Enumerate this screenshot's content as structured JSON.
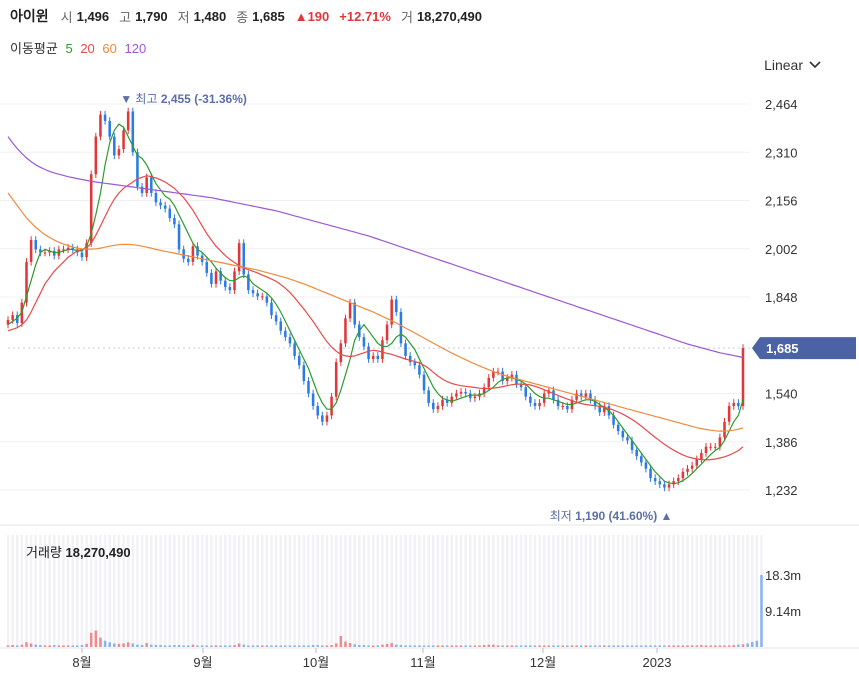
{
  "header": {
    "name": "아이윈",
    "open_label": "시",
    "open": "1,496",
    "high_label": "고",
    "high": "1,790",
    "low_label": "저",
    "low": "1,480",
    "close_label": "종",
    "close": "1,685",
    "change": "190",
    "change_pct": "+12.71%",
    "volume_label": "거",
    "volume": "18,270,490"
  },
  "ma_legend": {
    "label": "이동평균",
    "periods": [
      "5",
      "20",
      "60",
      "120"
    ],
    "colors": [
      "#2e9b2e",
      "#e84a4a",
      "#f08a3c",
      "#9b59d8"
    ]
  },
  "scale_selector": {
    "label": "Linear"
  },
  "volume_panel": {
    "label": "거래량",
    "value": "18,270,490"
  },
  "colors": {
    "up": "#e0373a",
    "down": "#2b7be4",
    "last_tag": "#4b63a5"
  },
  "chart_data": {
    "type": "candlestick",
    "y_ticks": [
      "2,464",
      "2,310",
      "2,156",
      "2,002",
      "1,848",
      "1,540",
      "1,386",
      "1,232"
    ],
    "ylim": [
      1190,
      2464
    ],
    "volume_ticks": [
      "18.3m",
      "9.14m"
    ],
    "x_ticks": [
      "8월",
      "9월",
      "10월",
      "11월",
      "12월",
      "2023"
    ],
    "last_price_tag": "1,685",
    "annotations": {
      "high": {
        "prefix": "▼",
        "label": "최고",
        "value": "2,455 (-31.36%)"
      },
      "low": {
        "label": "최저",
        "value": "1,190 (41.60%)",
        "suffix": "▲"
      }
    },
    "closes": [
      1775,
      1790,
      1765,
      1830,
      1960,
      2030,
      2000,
      1990,
      1990,
      1995,
      1980,
      2000,
      2000,
      2005,
      2000,
      1990,
      1975,
      2020,
      2240,
      2360,
      2430,
      2410,
      2360,
      2300,
      2320,
      2380,
      2440,
      2310,
      2200,
      2180,
      2230,
      2180,
      2150,
      2140,
      2130,
      2100,
      2080,
      2000,
      1970,
      1960,
      2010,
      1980,
      1960,
      1925,
      1890,
      1930,
      1900,
      1880,
      1870,
      1930,
      2020,
      1920,
      1870,
      1860,
      1850,
      1850,
      1830,
      1790,
      1770,
      1740,
      1720,
      1700,
      1660,
      1630,
      1580,
      1540,
      1500,
      1470,
      1450,
      1470,
      1530,
      1640,
      1700,
      1780,
      1830,
      1760,
      1720,
      1690,
      1650,
      1660,
      1650,
      1710,
      1760,
      1840,
      1800,
      1700,
      1660,
      1640,
      1630,
      1600,
      1550,
      1510,
      1490,
      1500,
      1520,
      1510,
      1530,
      1540,
      1545,
      1540,
      1525,
      1530,
      1540,
      1560,
      1590,
      1610,
      1610,
      1580,
      1590,
      1600,
      1570,
      1560,
      1530,
      1510,
      1500,
      1510,
      1540,
      1550,
      1520,
      1500,
      1500,
      1490,
      1520,
      1540,
      1530,
      1540,
      1520,
      1500,
      1480,
      1500,
      1470,
      1440,
      1420,
      1400,
      1390,
      1360,
      1340,
      1320,
      1300,
      1270,
      1260,
      1250,
      1240,
      1250,
      1260,
      1270,
      1290,
      1300,
      1310,
      1330,
      1350,
      1370,
      1370,
      1370,
      1400,
      1450,
      1500,
      1510,
      1500,
      1685
    ],
    "ma5": [
      1760,
      1770,
      1780,
      1800,
      1850,
      1900,
      1950,
      1990,
      2000,
      1995,
      1990,
      1990,
      1995,
      2000,
      2000,
      1995,
      1995,
      2010,
      2050,
      2110,
      2180,
      2270,
      2340,
      2380,
      2400,
      2390,
      2360,
      2330,
      2300,
      2290,
      2270,
      2240,
      2210,
      2190,
      2170,
      2160,
      2140,
      2110,
      2080,
      2050,
      2020,
      2000,
      1990,
      1975,
      1960,
      1940,
      1925,
      1910,
      1900,
      1900,
      1910,
      1915,
      1910,
      1890,
      1880,
      1870,
      1860,
      1845,
      1825,
      1800,
      1770,
      1740,
      1710,
      1680,
      1650,
      1620,
      1580,
      1540,
      1510,
      1490,
      1490,
      1510,
      1550,
      1600,
      1650,
      1710,
      1740,
      1760,
      1740,
      1720,
      1700,
      1690,
      1690,
      1700,
      1720,
      1730,
      1720,
      1700,
      1680,
      1650,
      1620,
      1590,
      1560,
      1540,
      1525,
      1520,
      1515,
      1520,
      1525,
      1530,
      1535,
      1535,
      1535,
      1540,
      1550,
      1560,
      1575,
      1585,
      1590,
      1590,
      1585,
      1580,
      1570,
      1555,
      1540,
      1530,
      1525,
      1525,
      1520,
      1515,
      1510,
      1505,
      1505,
      1510,
      1515,
      1520,
      1520,
      1515,
      1505,
      1495,
      1485,
      1470,
      1450,
      1430,
      1410,
      1390,
      1370,
      1350,
      1330,
      1310,
      1290,
      1275,
      1260,
      1255,
      1252,
      1255,
      1262,
      1272,
      1285,
      1300,
      1315,
      1330,
      1345,
      1358,
      1368,
      1390,
      1420,
      1450,
      1470,
      1520
    ],
    "ma20": [
      1740,
      1745,
      1750,
      1760,
      1775,
      1800,
      1830,
      1860,
      1890,
      1910,
      1930,
      1945,
      1960,
      1975,
      1985,
      1995,
      2000,
      2005,
      2020,
      2045,
      2075,
      2105,
      2135,
      2160,
      2180,
      2195,
      2205,
      2215,
      2225,
      2230,
      2235,
      2232,
      2228,
      2222,
      2215,
      2205,
      2195,
      2180,
      2165,
      2145,
      2125,
      2100,
      2075,
      2050,
      2030,
      2010,
      1995,
      1980,
      1968,
      1958,
      1948,
      1940,
      1935,
      1930,
      1925,
      1918,
      1912,
      1905,
      1898,
      1888,
      1876,
      1862,
      1846,
      1828,
      1810,
      1790,
      1770,
      1748,
      1726,
      1705,
      1688,
      1675,
      1665,
      1660,
      1658,
      1660,
      1665,
      1670,
      1675,
      1678,
      1676,
      1672,
      1668,
      1665,
      1660,
      1655,
      1650,
      1646,
      1642,
      1637,
      1630,
      1620,
      1608,
      1596,
      1586,
      1578,
      1572,
      1568,
      1565,
      1563,
      1561,
      1559,
      1557,
      1556,
      1556,
      1557,
      1559,
      1562,
      1565,
      1568,
      1570,
      1570,
      1569,
      1567,
      1563,
      1558,
      1552,
      1546,
      1540,
      1534,
      1528,
      1522,
      1517,
      1512,
      1508,
      1505,
      1503,
      1501,
      1499,
      1496,
      1492,
      1487,
      1481,
      1474,
      1466,
      1457,
      1447,
      1436,
      1424,
      1412,
      1400,
      1389,
      1378,
      1368,
      1359,
      1351,
      1344,
      1338,
      1334,
      1331,
      1329,
      1328,
      1329,
      1331,
      1334,
      1338,
      1343,
      1350,
      1358,
      1370
    ],
    "ma60": [
      2180,
      2160,
      2140,
      2120,
      2100,
      2085,
      2070,
      2058,
      2047,
      2038,
      2030,
      2023,
      2017,
      2012,
      2008,
      2004,
      2002,
      2001,
      2001,
      2002,
      2004,
      2007,
      2010,
      2013,
      2015,
      2016,
      2016,
      2015,
      2013,
      2010,
      2007,
      2004,
      2000,
      1997,
      1994,
      1991,
      1988,
      1985,
      1982,
      1979,
      1976,
      1973,
      1970,
      1967,
      1964,
      1961,
      1958,
      1955,
      1952,
      1949,
      1946,
      1943,
      1940,
      1937,
      1934,
      1930,
      1926,
      1922,
      1918,
      1914,
      1910,
      1905,
      1900,
      1895,
      1890,
      1884,
      1878,
      1872,
      1866,
      1860,
      1854,
      1848,
      1842,
      1836,
      1830,
      1824,
      1818,
      1812,
      1806,
      1800,
      1793,
      1786,
      1779,
      1772,
      1765,
      1757,
      1749,
      1741,
      1733,
      1725,
      1717,
      1709,
      1701,
      1693,
      1685,
      1677,
      1669,
      1662,
      1655,
      1648,
      1641,
      1634,
      1628,
      1622,
      1616,
      1610,
      1605,
      1600,
      1595,
      1591,
      1587,
      1583,
      1579,
      1575,
      1571,
      1567,
      1563,
      1559,
      1555,
      1551,
      1547,
      1543,
      1539,
      1535,
      1531,
      1527,
      1523,
      1519,
      1515,
      1511,
      1507,
      1503,
      1499,
      1495,
      1491,
      1487,
      1483,
      1479,
      1475,
      1471,
      1467,
      1463,
      1459,
      1455,
      1451,
      1447,
      1443,
      1439,
      1435,
      1431,
      1428,
      1425,
      1423,
      1421,
      1420,
      1420,
      1421,
      1423,
      1426,
      1430
    ],
    "ma120": [
      2360,
      2340,
      2322,
      2306,
      2292,
      2280,
      2270,
      2262,
      2255,
      2249,
      2244,
      2240,
      2236,
      2232,
      2229,
      2226,
      2223,
      2220,
      2217,
      2215,
      2213,
      2211,
      2209,
      2207,
      2205,
      2203,
      2201,
      2199,
      2197,
      2195,
      2193,
      2191,
      2189,
      2187,
      2185,
      2183,
      2181,
      2179,
      2177,
      2175,
      2173,
      2171,
      2169,
      2167,
      2165,
      2162,
      2159,
      2156,
      2153,
      2150,
      2147,
      2144,
      2141,
      2138,
      2135,
      2132,
      2129,
      2126,
      2123,
      2119,
      2115,
      2111,
      2107,
      2103,
      2099,
      2095,
      2091,
      2087,
      2083,
      2079,
      2075,
      2071,
      2067,
      2063,
      2059,
      2055,
      2051,
      2047,
      2043,
      2038,
      2033,
      2028,
      2023,
      2018,
      2013,
      2008,
      2003,
      1998,
      1993,
      1988,
      1983,
      1978,
      1973,
      1968,
      1963,
      1958,
      1953,
      1948,
      1943,
      1938,
      1933,
      1928,
      1923,
      1918,
      1913,
      1908,
      1903,
      1898,
      1893,
      1888,
      1883,
      1878,
      1873,
      1868,
      1863,
      1858,
      1853,
      1848,
      1843,
      1838,
      1833,
      1828,
      1823,
      1818,
      1813,
      1808,
      1803,
      1798,
      1793,
      1788,
      1783,
      1778,
      1773,
      1768,
      1763,
      1758,
      1753,
      1748,
      1743,
      1738,
      1733,
      1728,
      1723,
      1718,
      1713,
      1708,
      1703,
      1698,
      1694,
      1690,
      1686,
      1682,
      1678,
      1674,
      1670,
      1667,
      1664,
      1661,
      1658,
      1655
    ],
    "volumes": [
      0.4,
      0.5,
      0.4,
      0.6,
      1.2,
      0.9,
      0.6,
      0.5,
      0.4,
      0.4,
      0.5,
      0.4,
      0.4,
      0.4,
      0.4,
      0.4,
      0.5,
      0.8,
      3.6,
      4.2,
      2.4,
      1.6,
      1.2,
      0.9,
      0.8,
      0.9,
      1.2,
      0.9,
      0.6,
      0.5,
      1.0,
      0.6,
      0.5,
      0.5,
      0.4,
      0.4,
      0.5,
      0.5,
      0.4,
      0.4,
      0.6,
      0.4,
      0.4,
      0.4,
      0.4,
      0.4,
      0.4,
      0.4,
      0.4,
      0.5,
      0.9,
      0.6,
      0.4,
      0.4,
      0.4,
      0.4,
      0.4,
      0.4,
      0.4,
      0.4,
      0.4,
      0.4,
      0.4,
      0.4,
      0.4,
      0.4,
      0.5,
      0.5,
      0.4,
      0.4,
      0.5,
      0.9,
      2.8,
      1.4,
      1.0,
      0.7,
      0.5,
      0.5,
      0.4,
      0.4,
      0.4,
      0.6,
      0.8,
      1.0,
      0.6,
      0.5,
      0.4,
      0.4,
      0.4,
      0.4,
      0.4,
      0.4,
      0.4,
      0.4,
      0.4,
      0.4,
      0.4,
      0.4,
      0.4,
      0.4,
      0.4,
      0.4,
      0.4,
      0.5,
      0.6,
      0.6,
      0.4,
      0.4,
      0.4,
      0.4,
      0.4,
      0.4,
      0.4,
      0.4,
      0.4,
      0.4,
      0.4,
      0.4,
      0.4,
      0.4,
      0.4,
      0.4,
      0.4,
      0.4,
      0.4,
      0.4,
      0.4,
      0.4,
      0.4,
      0.4,
      0.4,
      0.4,
      0.4,
      0.4,
      0.4,
      0.4,
      0.4,
      0.4,
      0.4,
      0.4,
      0.4,
      0.4,
      0.4,
      0.4,
      0.4,
      0.4,
      0.4,
      0.4,
      0.4,
      0.4,
      0.5,
      0.4,
      0.4,
      0.4,
      0.4,
      0.4,
      0.4,
      0.5,
      0.6,
      0.7,
      0.9,
      1.3,
      1.6,
      18.3
    ]
  }
}
